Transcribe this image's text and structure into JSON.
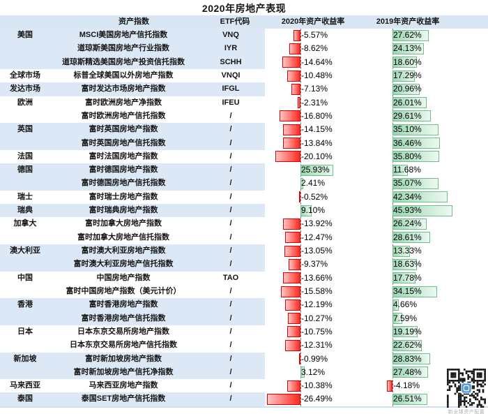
{
  "title": "2020年房地产表现",
  "chart_data": {
    "type": "table",
    "title": "2020年房地产表现",
    "columns": [
      "资产指数",
      "ETF代码",
      "2020年资产收益率",
      "2019年资产收益率"
    ],
    "bar_style": "excel-data-bars, red=negative (grow left of dashed axis), green=positive (grow right of dashed axis)",
    "rows": [
      {
        "region": "美国",
        "stripe": true,
        "asset": "MSCI美国房地产信托指数",
        "etf": "VNQ",
        "r2020": -5.57,
        "r2020_label": "-5.57%",
        "r2019": 27.62,
        "r2019_label": "27.62%"
      },
      {
        "region": "",
        "stripe": true,
        "asset": "道琼斯美国房地产行业指数",
        "etf": "IYR",
        "r2020": -8.62,
        "r2020_label": "-8.62%",
        "r2019": 24.13,
        "r2019_label": "24.13%"
      },
      {
        "region": "",
        "stripe": true,
        "asset": "道琼斯精选美国房地产投资信托指数",
        "etf": "SCHH",
        "r2020": -14.64,
        "r2020_label": "-14.64%",
        "r2019": 18.6,
        "r2019_label": "18.60%"
      },
      {
        "region": "全球市场",
        "stripe": false,
        "asset": "标普全球美国以外房地产指数",
        "etf": "VNQI",
        "r2020": -10.48,
        "r2020_label": "-10.48%",
        "r2019": 17.29,
        "r2019_label": "17.29%"
      },
      {
        "region": "发达市场",
        "stripe": true,
        "asset": "富时发达市场房地产指数",
        "etf": "IFGL",
        "r2020": -7.13,
        "r2020_label": "-7.13%",
        "r2019": 20.96,
        "r2019_label": "20.96%"
      },
      {
        "region": "欧洲",
        "stripe": false,
        "asset": "富时欧洲房地产净指数",
        "etf": "IFEU",
        "r2020": -2.31,
        "r2020_label": "-2.31%",
        "r2019": 26.01,
        "r2019_label": "26.01%"
      },
      {
        "region": "",
        "stripe": false,
        "asset": "富时欧洲房地产信托指数",
        "etf": "/",
        "r2020": -16.8,
        "r2020_label": "-16.80%",
        "r2019": 29.61,
        "r2019_label": "29.61%"
      },
      {
        "region": "英国",
        "stripe": true,
        "asset": "富时英国房地产指数",
        "etf": "/",
        "r2020": -14.15,
        "r2020_label": "-14.15%",
        "r2019": 35.1,
        "r2019_label": "35.10%"
      },
      {
        "region": "",
        "stripe": true,
        "asset": "富时英国房地产信托指数",
        "etf": "/",
        "r2020": -13.84,
        "r2020_label": "-13.84%",
        "r2019": 36.46,
        "r2019_label": "36.46%"
      },
      {
        "region": "法国",
        "stripe": false,
        "asset": "富时法国房地产指数",
        "etf": "/",
        "r2020": -20.1,
        "r2020_label": "-20.10%",
        "r2019": 35.8,
        "r2019_label": "35.80%"
      },
      {
        "region": "德国",
        "stripe": true,
        "asset": "富时德国房地产指数",
        "etf": "/",
        "r2020": 25.93,
        "r2020_label": "25.93%",
        "r2019": 11.68,
        "r2019_label": "11.68%"
      },
      {
        "region": "",
        "stripe": true,
        "asset": "富时德国房地产信托指数",
        "etf": "/",
        "r2020": 2.41,
        "r2020_label": "2.41%",
        "r2019": 35.07,
        "r2019_label": "35.07%"
      },
      {
        "region": "瑞士",
        "stripe": false,
        "asset": "富时瑞士房地产指数",
        "etf": "/",
        "r2020": -0.52,
        "r2020_label": "-0.52%",
        "r2019": 42.34,
        "r2019_label": "42.34%"
      },
      {
        "region": "瑞典",
        "stripe": true,
        "asset": "富时瑞典房地产指数",
        "etf": "/",
        "r2020": 9.1,
        "r2020_label": "9.10%",
        "r2019": 45.93,
        "r2019_label": "45.93%"
      },
      {
        "region": "加拿大",
        "stripe": false,
        "asset": "富时加拿大房地产指数",
        "etf": "/",
        "r2020": -13.92,
        "r2020_label": "-13.92%",
        "r2019": 26.24,
        "r2019_label": "26.24%"
      },
      {
        "region": "",
        "stripe": false,
        "asset": "富时加拿大房地产信托指数",
        "etf": "/",
        "r2020": -12.47,
        "r2020_label": "-12.47%",
        "r2019": 28.61,
        "r2019_label": "28.61%"
      },
      {
        "region": "澳大利亚",
        "stripe": true,
        "asset": "富时澳大利亚房地产指数",
        "etf": "/",
        "r2020": -13.05,
        "r2020_label": "-13.05%",
        "r2019": 13.33,
        "r2019_label": "13.33%"
      },
      {
        "region": "",
        "stripe": true,
        "asset": "富时澳大利亚房地产信托指数",
        "etf": "/",
        "r2020": -9.37,
        "r2020_label": "-9.37%",
        "r2019": 18.63,
        "r2019_label": "18.63%"
      },
      {
        "region": "中国",
        "stripe": false,
        "asset": "中国房地产指数",
        "etf": "TAO",
        "r2020": -13.66,
        "r2020_label": "-13.66%",
        "r2019": 17.78,
        "r2019_label": "17.78%"
      },
      {
        "region": "",
        "stripe": false,
        "asset": "富时中国房地产指数（美元计价）",
        "etf": "/",
        "r2020": -15.58,
        "r2020_label": "-15.58%",
        "r2019": 34.15,
        "r2019_label": "34.15%"
      },
      {
        "region": "香港",
        "stripe": true,
        "asset": "富时香港房地产指数",
        "etf": "/",
        "r2020": -12.19,
        "r2020_label": "-12.19%",
        "r2019": 4.66,
        "r2019_label": "4.66%"
      },
      {
        "region": "",
        "stripe": true,
        "asset": "富时香港房地产信托指数",
        "etf": "/",
        "r2020": -10.27,
        "r2020_label": "-10.27%",
        "r2019": 7.59,
        "r2019_label": "7.59%"
      },
      {
        "region": "日本",
        "stripe": false,
        "asset": "日本东京交易所房地产指数",
        "etf": "/",
        "r2020": -10.75,
        "r2020_label": "-10.75%",
        "r2019": 19.19,
        "r2019_label": "19.19%"
      },
      {
        "region": "",
        "stripe": false,
        "asset": "日本东京交易所房地产信托指数",
        "etf": "/",
        "r2020": -12.31,
        "r2020_label": "-12.31%",
        "r2019": 22.62,
        "r2019_label": "22.62%"
      },
      {
        "region": "新加坡",
        "stripe": true,
        "asset": "富时新加坡房地产指数",
        "etf": "/",
        "r2020": -0.99,
        "r2020_label": "-0.99%",
        "r2019": 28.83,
        "r2019_label": "28.83%"
      },
      {
        "region": "",
        "stripe": true,
        "asset": "富时新加坡房地产信托净指数",
        "etf": "/",
        "r2020": 3.12,
        "r2020_label": "3.12%",
        "r2019": 27.48,
        "r2019_label": "27.48%"
      },
      {
        "region": "马来西亚",
        "stripe": false,
        "asset": "马来西亚房地产指数",
        "etf": "/",
        "r2020": -10.38,
        "r2020_label": "-10.38%",
        "r2019": -4.18,
        "r2019_label": "-4.18%"
      },
      {
        "region": "泰国",
        "stripe": true,
        "asset": "泰国SET房地产信托指数",
        "etf": "/",
        "r2020": -26.49,
        "r2020_label": "-26.49%",
        "r2019": 26.51,
        "r2019_label": "26.51%"
      }
    ]
  },
  "qr": {
    "caption": "新全球资产配置"
  },
  "colors": {
    "stripe_blue": "#dce8f5",
    "header_blue": "#d9e6f4",
    "bar_negative": "#ff2a1e",
    "bar_negative_border": "#dd0000",
    "bar_positive": "#9bd6b1",
    "bar_positive_border": "#6fbd8b",
    "axis_dash": "#7a7a7a",
    "qr_logo_blue": "#4f9bd8"
  }
}
